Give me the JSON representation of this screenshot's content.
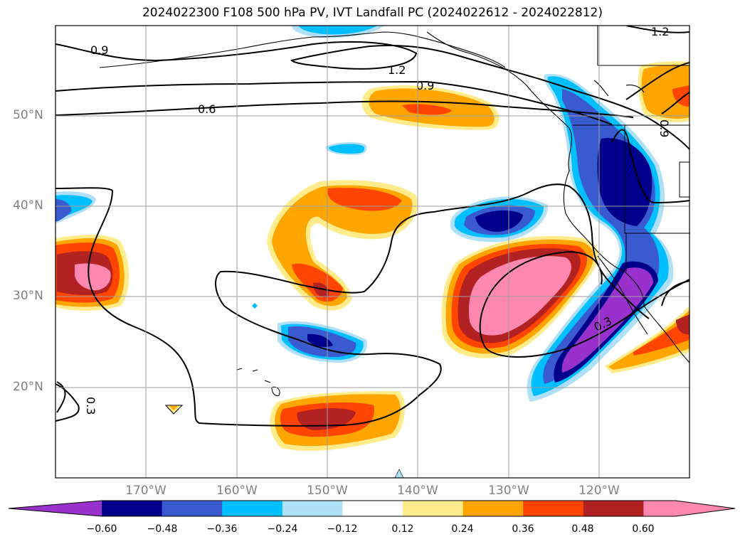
{
  "title": "2024022300 F108 500 hPa PV, IVT Landfall PC (2024022612 - 2024022812)",
  "map": {
    "lat_labels": [
      "50°N",
      "40°N",
      "30°N",
      "20°N"
    ],
    "lon_labels": [
      "170°W",
      "160°W",
      "150°W",
      "140°W",
      "130°W",
      "120°W"
    ],
    "contour_labels": [
      "0.9",
      "1.2",
      "0.9",
      "0.6",
      "1.2",
      "0.3",
      "0.3",
      "0.9"
    ]
  },
  "colorbar": {
    "ticks": [
      "−0.60",
      "−0.48",
      "−0.36",
      "−0.24",
      "−0.12",
      "0.12",
      "0.24",
      "0.36",
      "0.48",
      "0.60"
    ],
    "colors": [
      "#9932cc",
      "#00008b",
      "#3a5bd0",
      "#00bfff",
      "#b0e0f8",
      "#ffffff",
      "#ffeb8a",
      "#ffa500",
      "#ff4500",
      "#b22222",
      "#ff88b0"
    ]
  }
}
